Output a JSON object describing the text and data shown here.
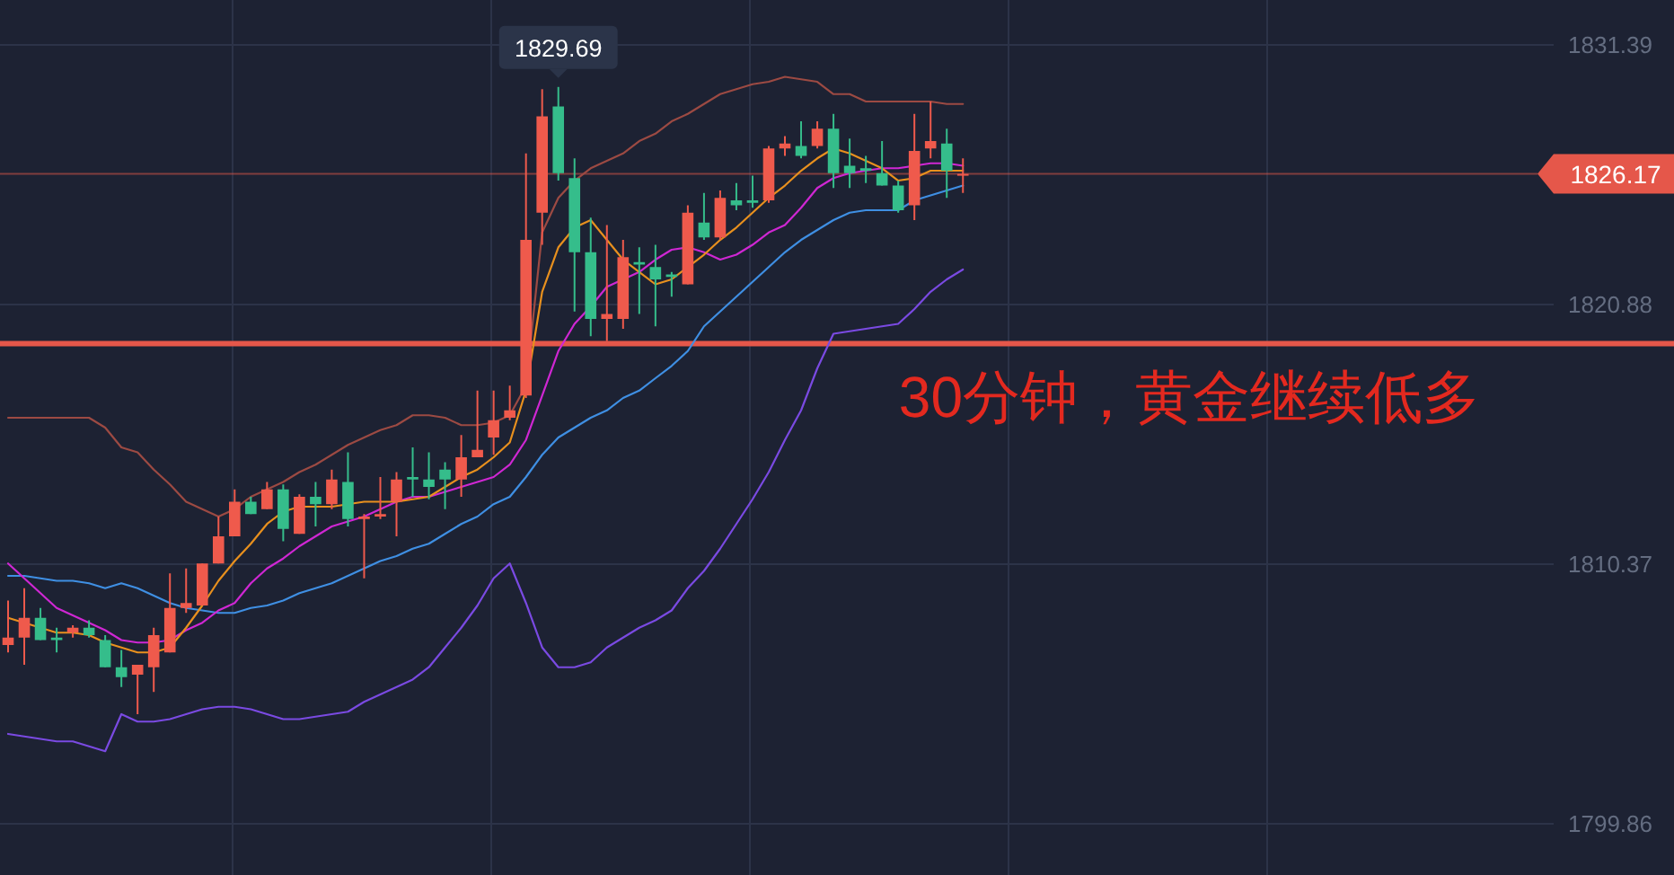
{
  "chart_data": {
    "type": "candlestick",
    "title": "30分钟，黄金继续低多",
    "categories": [
      null,
      null,
      null,
      null,
      null,
      null,
      null,
      null,
      null,
      null,
      null,
      null,
      null,
      null,
      null,
      null,
      null,
      null,
      null,
      null,
      null,
      null,
      null,
      null,
      null,
      null,
      null,
      null,
      null,
      null,
      null,
      null,
      null,
      null,
      null,
      null,
      null,
      null,
      null,
      null,
      null,
      null,
      null,
      null,
      null,
      null,
      null,
      null,
      null,
      null,
      null,
      null,
      null,
      null,
      null,
      null,
      null,
      null,
      null,
      null,
      null,
      null,
      null,
      null,
      null,
      null,
      null,
      null,
      null,
      null,
      null,
      null,
      null,
      null,
      null,
      null,
      null,
      null,
      null,
      null,
      null,
      null,
      null,
      null,
      null,
      null,
      null,
      null,
      null,
      null,
      null,
      null,
      null,
      null,
      null,
      null
    ],
    "ohlc": [
      [
        1807.1,
        1808.9,
        1806.8,
        1807.4
      ],
      [
        1807.4,
        1809.4,
        1806.3,
        1808.2
      ],
      [
        1808.2,
        1808.6,
        1807.3,
        1807.3
      ],
      [
        1807.4,
        1807.8,
        1806.8,
        1807.3
      ],
      [
        1807.6,
        1807.9,
        1807.4,
        1807.8
      ],
      [
        1807.8,
        1808.1,
        1807.4,
        1807.5
      ],
      [
        1807.3,
        1807.5,
        1806.2,
        1806.2
      ],
      [
        1806.2,
        1806.9,
        1805.4,
        1805.8
      ],
      [
        1805.9,
        1806.3,
        1804.3,
        1806.3
      ],
      [
        1806.2,
        1807.8,
        1805.2,
        1807.5
      ],
      [
        1806.8,
        1810.0,
        1806.8,
        1808.6
      ],
      [
        1808.6,
        1810.2,
        1808.4,
        1808.8
      ],
      [
        1808.7,
        1810.4,
        1808.7,
        1810.4
      ],
      [
        1810.4,
        1812.3,
        1810.4,
        1811.5
      ],
      [
        1811.5,
        1813.4,
        1811.5,
        1812.9
      ],
      [
        1812.9,
        1813.1,
        1812.4,
        1812.4
      ],
      [
        1812.6,
        1813.7,
        1812.6,
        1813.4
      ],
      [
        1813.4,
        1813.6,
        1811.3,
        1811.8
      ],
      [
        1811.6,
        1813.2,
        1811.6,
        1813.1
      ],
      [
        1813.1,
        1813.7,
        1811.9,
        1812.8
      ],
      [
        1812.8,
        1814.2,
        1812.6,
        1813.8
      ],
      [
        1813.7,
        1814.9,
        1811.9,
        1812.2
      ],
      [
        1812.2,
        1812.4,
        1809.8,
        1812.3
      ],
      [
        1812.3,
        1813.9,
        1812.2,
        1812.4
      ],
      [
        1812.9,
        1814.1,
        1811.5,
        1813.8
      ],
      [
        1813.9,
        1815.1,
        1813.1,
        1813.8
      ],
      [
        1813.8,
        1814.9,
        1813.0,
        1813.5
      ],
      [
        1814.2,
        1814.5,
        1812.6,
        1813.8
      ],
      [
        1813.8,
        1815.6,
        1813.1,
        1814.7
      ],
      [
        1814.7,
        1817.4,
        1814.7,
        1815.0
      ],
      [
        1815.5,
        1817.4,
        1814.8,
        1816.2
      ],
      [
        1816.3,
        1817.6,
        1816.2,
        1816.6
      ],
      [
        1817.2,
        1827.0,
        1817.1,
        1823.5
      ],
      [
        1824.6,
        1829.6,
        1823.3,
        1828.5
      ],
      [
        1828.9,
        1829.69,
        1825.9,
        1826.2
      ],
      [
        1826.0,
        1826.8,
        1820.6,
        1823.0
      ],
      [
        1823.0,
        1824.4,
        1819.6,
        1820.3
      ],
      [
        1820.3,
        1824.1,
        1819.4,
        1820.5
      ],
      [
        1820.3,
        1823.5,
        1819.9,
        1822.8
      ],
      [
        1822.6,
        1823.2,
        1820.5,
        1822.5
      ],
      [
        1822.4,
        1823.3,
        1820.0,
        1821.9
      ],
      [
        1822.1,
        1822.2,
        1821.2,
        1822.0
      ],
      [
        1821.7,
        1824.9,
        1821.7,
        1824.6
      ],
      [
        1824.2,
        1825.4,
        1823.5,
        1823.6
      ],
      [
        1823.6,
        1825.5,
        1823.5,
        1825.2
      ],
      [
        1825.1,
        1825.8,
        1824.7,
        1824.9
      ],
      [
        1825.1,
        1826.1,
        1824.8,
        1825.0
      ],
      [
        1825.1,
        1827.3,
        1825.0,
        1827.2
      ],
      [
        1827.2,
        1827.7,
        1826.9,
        1827.4
      ],
      [
        1827.3,
        1828.3,
        1826.8,
        1826.9
      ],
      [
        1827.3,
        1828.3,
        1827.2,
        1828.0
      ],
      [
        1828.0,
        1828.6,
        1825.6,
        1826.2
      ],
      [
        1826.5,
        1827.6,
        1825.6,
        1826.2
      ],
      [
        1826.4,
        1826.9,
        1825.8,
        1826.3
      ],
      [
        1826.2,
        1827.5,
        1825.7,
        1825.7
      ],
      [
        1825.7,
        1825.9,
        1824.6,
        1824.7
      ],
      [
        1824.9,
        1828.6,
        1824.3,
        1827.1
      ],
      [
        1827.2,
        1829.1,
        1826.8,
        1827.5
      ],
      [
        1827.4,
        1828.0,
        1825.2,
        1826.3
      ],
      [
        1826.1,
        1826.8,
        1825.4,
        1826.17
      ],
      null,
      null,
      null,
      null,
      null,
      null,
      null,
      null,
      null,
      null,
      null,
      null,
      null,
      null,
      null,
      null,
      null,
      null,
      null,
      null,
      null,
      null,
      null,
      null,
      null,
      null,
      null,
      null,
      null,
      null,
      null,
      null,
      null,
      null,
      null,
      null
    ],
    "colors": [
      "#ef5a4c",
      "#ef5a4c",
      "#35bd8b",
      "#35bd8b",
      "#ef5a4c",
      "#35bd8b",
      "#35bd8b",
      "#35bd8b",
      "#ef5a4c",
      "#ef5a4c",
      "#ef5a4c",
      "#ef5a4c",
      "#ef5a4c",
      "#ef5a4c",
      "#ef5a4c",
      "#35bd8b",
      "#ef5a4c",
      "#35bd8b",
      "#ef5a4c",
      "#35bd8b",
      "#ef5a4c",
      "#35bd8b",
      "#ef5a4c",
      "#ef5a4c",
      "#ef5a4c",
      "#35bd8b",
      "#35bd8b",
      "#35bd8b",
      "#ef5a4c",
      "#ef5a4c",
      "#ef5a4c",
      "#ef5a4c",
      "#ef5a4c",
      "#ef5a4c",
      "#35bd8b",
      "#35bd8b",
      "#35bd8b",
      "#ef5a4c",
      "#ef5a4c",
      "#35bd8b",
      "#35bd8b",
      "#35bd8b",
      "#ef5a4c",
      "#35bd8b",
      "#ef5a4c",
      "#35bd8b",
      "#35bd8b",
      "#ef5a4c",
      "#ef5a4c",
      "#35bd8b",
      "#ef5a4c",
      "#35bd8b",
      "#35bd8b",
      "#35bd8b",
      "#35bd8b",
      "#35bd8b",
      "#ef5a4c",
      "#ef5a4c",
      "#35bd8b",
      "#ef5a4c",
      null,
      null,
      null,
      null,
      null,
      null,
      null,
      null,
      null,
      null,
      null,
      null,
      null,
      null,
      null,
      null,
      null,
      null,
      null,
      null,
      null,
      null,
      null,
      null,
      null,
      null,
      null,
      null,
      null,
      null,
      null,
      null,
      null,
      null,
      null,
      null
    ],
    "series": [
      {
        "type": "line",
        "color": "#9c4a43",
        "values": [
          1816.3,
          1816.3,
          1816.3,
          1816.3,
          1816.3,
          1816.3,
          1815.9,
          1815.1,
          1814.9,
          1814.2,
          1813.6,
          1812.9,
          1812.6,
          1812.3,
          1812.6,
          1813.1,
          1813.4,
          1813.7,
          1814.1,
          1814.4,
          1814.8,
          1815.2,
          1815.5,
          1815.8,
          1816.0,
          1816.4,
          1816.4,
          1816.3,
          1816.0,
          1816.0,
          1816.1,
          1816.4,
          1817.6,
          1823.8,
          1825.2,
          1825.9,
          1826.4,
          1826.7,
          1827.0,
          1827.5,
          1827.8,
          1828.3,
          1828.6,
          1829.0,
          1829.4,
          1829.6,
          1829.8,
          1829.9,
          1830.1,
          1830.0,
          1829.9,
          1829.4,
          1829.4,
          1829.1,
          1829.1,
          1829.1,
          1829.1,
          1829.1,
          1829.0,
          1829.0,
          null,
          null,
          null,
          null,
          null,
          null,
          null,
          null,
          null,
          null,
          null,
          null,
          null,
          null,
          null,
          null,
          null,
          null,
          null,
          null,
          null,
          null,
          null,
          null,
          null,
          null,
          null,
          null,
          null,
          null,
          null,
          null,
          null,
          null,
          null,
          null
        ]
      },
      {
        "type": "line",
        "color": "#3f8fe3",
        "values": [
          1809.9,
          1809.9,
          1809.8,
          1809.7,
          1809.7,
          1809.6,
          1809.4,
          1809.6,
          1809.4,
          1809.1,
          1808.8,
          1808.6,
          1808.5,
          1808.4,
          1808.4,
          1808.6,
          1808.7,
          1808.9,
          1809.2,
          1809.4,
          1809.6,
          1809.9,
          1810.2,
          1810.5,
          1810.7,
          1811.0,
          1811.2,
          1811.6,
          1812.0,
          1812.3,
          1812.8,
          1813.1,
          1813.9,
          1814.8,
          1815.5,
          1815.9,
          1816.3,
          1816.6,
          1817.1,
          1817.4,
          1817.9,
          1818.4,
          1819.0,
          1820.0,
          1820.6,
          1821.2,
          1821.8,
          1822.4,
          1823.0,
          1823.5,
          1823.9,
          1824.3,
          1824.6,
          1824.7,
          1824.7,
          1824.7,
          1825.1,
          1825.3,
          1825.5,
          1825.7,
          null,
          null,
          null,
          null,
          null,
          null,
          null,
          null,
          null,
          null,
          null,
          null,
          null,
          null,
          null,
          null,
          null,
          null,
          null,
          null,
          null,
          null,
          null,
          null,
          null,
          null,
          null,
          null,
          null,
          null,
          null,
          null,
          null,
          null,
          null,
          null
        ]
      },
      {
        "type": "line",
        "color": "#7a4ae2",
        "values": [
          1803.5,
          1803.4,
          1803.3,
          1803.2,
          1803.2,
          1803.0,
          1802.8,
          1804.3,
          1804.0,
          1804.0,
          1804.1,
          1804.3,
          1804.5,
          1804.6,
          1804.6,
          1804.5,
          1804.3,
          1804.1,
          1804.1,
          1804.2,
          1804.3,
          1804.4,
          1804.8,
          1805.1,
          1805.4,
          1805.7,
          1806.2,
          1807.0,
          1807.8,
          1808.7,
          1809.8,
          1810.4,
          1808.8,
          1807.0,
          1806.2,
          1806.2,
          1806.4,
          1807.0,
          1807.4,
          1807.8,
          1808.1,
          1808.5,
          1809.4,
          1810.1,
          1811.0,
          1812.0,
          1813.0,
          1814.1,
          1815.4,
          1816.6,
          1818.3,
          1819.7,
          1819.8,
          1819.9,
          1820.0,
          1820.1,
          1820.7,
          1821.4,
          1821.9,
          1822.3,
          null,
          null,
          null,
          null,
          null,
          null,
          null,
          null,
          null,
          null,
          null,
          null,
          null,
          null,
          null,
          null,
          null,
          null,
          null,
          null,
          null,
          null,
          null,
          null,
          null,
          null,
          null,
          null,
          null,
          null,
          null,
          null,
          null,
          null,
          null,
          null
        ]
      },
      {
        "type": "line",
        "color": "#cf27d3",
        "values": [
          1810.4,
          1809.8,
          1809.2,
          1808.6,
          1808.3,
          1808.0,
          1807.7,
          1807.3,
          1807.2,
          1807.2,
          1807.3,
          1807.7,
          1808.0,
          1808.5,
          1808.8,
          1809.6,
          1810.2,
          1810.6,
          1811.1,
          1811.5,
          1811.9,
          1812.1,
          1812.3,
          1812.6,
          1812.9,
          1813.1,
          1813.1,
          1813.3,
          1813.5,
          1813.7,
          1813.9,
          1814.4,
          1815.4,
          1817.2,
          1819.0,
          1820.1,
          1820.8,
          1821.6,
          1821.9,
          1822.2,
          1822.7,
          1823.1,
          1823.2,
          1823.0,
          1822.7,
          1822.9,
          1823.3,
          1823.8,
          1824.1,
          1824.8,
          1825.6,
          1826.0,
          1826.2,
          1826.3,
          1826.4,
          1826.4,
          1826.5,
          1826.6,
          1826.6,
          1826.5,
          null,
          null,
          null,
          null,
          null,
          null,
          null,
          null,
          null,
          null,
          null,
          null,
          null,
          null,
          null,
          null,
          null,
          null,
          null,
          null,
          null,
          null,
          null,
          null,
          null,
          null,
          null,
          null,
          null,
          null,
          null,
          null,
          null,
          null,
          null,
          null
        ]
      },
      {
        "type": "line",
        "color": "#e8901e",
        "values": [
          1808.2,
          1808.0,
          1807.8,
          1807.6,
          1807.6,
          1807.5,
          1807.2,
          1807.0,
          1806.8,
          1806.8,
          1807.0,
          1807.8,
          1808.7,
          1809.7,
          1810.5,
          1811.2,
          1812.0,
          1812.5,
          1812.7,
          1812.7,
          1812.7,
          1812.8,
          1812.9,
          1812.9,
          1812.9,
          1813.0,
          1813.1,
          1813.5,
          1813.9,
          1814.2,
          1814.7,
          1815.3,
          1817.4,
          1821.4,
          1823.2,
          1824.0,
          1824.3,
          1823.5,
          1822.7,
          1822.2,
          1821.7,
          1821.9,
          1822.4,
          1822.9,
          1823.5,
          1824.0,
          1824.6,
          1825.2,
          1825.7,
          1826.3,
          1826.8,
          1827.2,
          1827.0,
          1826.7,
          1826.4,
          1825.9,
          1826.0,
          1826.3,
          1826.3,
          1826.3,
          null,
          null,
          null,
          null,
          null,
          null,
          null,
          null,
          null,
          null,
          null,
          null,
          null,
          null,
          null,
          null,
          null,
          null,
          null,
          null,
          null,
          null,
          null,
          null,
          null,
          null,
          null,
          null,
          null,
          null,
          null,
          null,
          null,
          null,
          null,
          null
        ]
      }
    ],
    "ylim": [
      1797.79,
      1833.21
    ],
    "yticks": [
      1831.39,
      1820.88,
      1810.37,
      1799.86
    ],
    "grid": true,
    "tick_labels": "y",
    "ref_lines": [
      {
        "axis": "y",
        "value": 1826.17,
        "label": "1826.17",
        "color": "#e5574a"
      },
      {
        "axis": "y",
        "value": 1819.3,
        "color": "#e5574a"
      }
    ],
    "annotations": [
      {
        "text": "1829.69",
        "y": 1829.69
      }
    ]
  }
}
